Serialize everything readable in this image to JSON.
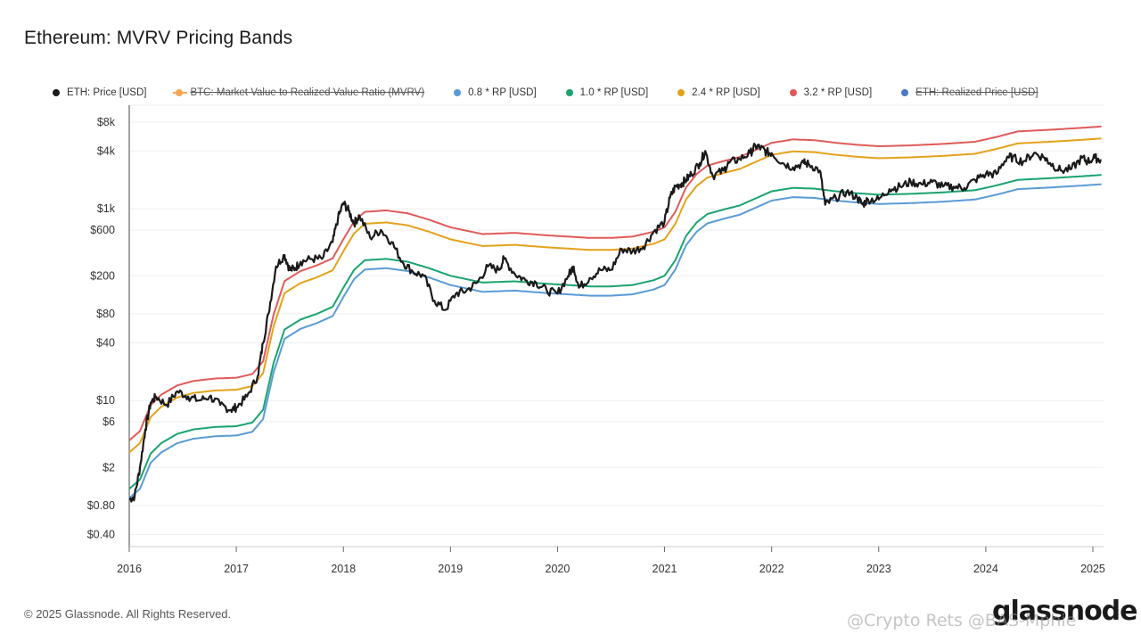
{
  "header": {
    "title": "Ethereum: MVRV Pricing Bands"
  },
  "legend": [
    {
      "label": "ETH: Price [USD]",
      "color": "#1a1a1a",
      "disabled": false,
      "style": "dot"
    },
    {
      "label": "BTC: Market Value to Realized Value Ratio (MVRV)",
      "color": "#f5a55a",
      "disabled": true,
      "style": "line"
    },
    {
      "label": "0.8 * RP [USD]",
      "color": "#5a9bd5",
      "disabled": false,
      "style": "dot"
    },
    {
      "label": "1.0 * RP [USD]",
      "color": "#1aa36f",
      "disabled": false,
      "style": "dot"
    },
    {
      "label": "2.4 * RP [USD]",
      "color": "#e3a21a",
      "disabled": false,
      "style": "dot"
    },
    {
      "label": "3.2 * RP [USD]",
      "color": "#e05a5a",
      "disabled": false,
      "style": "dot"
    },
    {
      "label": "ETH: Realized Price [USD]",
      "color": "#4a78c2",
      "disabled": true,
      "style": "dot"
    }
  ],
  "footer": {
    "copyright": "© 2025 Glassnode. All Rights Reserved.",
    "brand": "glassnode"
  },
  "watermark": "@Crypto Rets @BAS-Mphie",
  "chart_data": {
    "type": "line",
    "yscale": "log",
    "ylim": [
      0.3,
      12000
    ],
    "xlim": [
      2016.0,
      2025.1
    ],
    "ytick_labels": [
      "$8k",
      "$4k",
      "$1k",
      "$600",
      "$200",
      "$80",
      "$40",
      "$10",
      "$6",
      "$2",
      "$0.80",
      "$0.40"
    ],
    "ytick_values": [
      8000,
      4000,
      1000,
      600,
      200,
      80,
      40,
      10,
      6,
      2,
      0.8,
      0.4
    ],
    "xtick_labels": [
      "2016",
      "2017",
      "2018",
      "2019",
      "2020",
      "2021",
      "2022",
      "2023",
      "2024",
      "2025"
    ],
    "xtick_values": [
      2016,
      2017,
      2018,
      2019,
      2020,
      2021,
      2022,
      2023,
      2024,
      2025
    ],
    "grid": true,
    "realized_price_x": [
      2016.0,
      2016.1,
      2016.2,
      2016.3,
      2016.45,
      2016.6,
      2016.8,
      2017.0,
      2017.15,
      2017.25,
      2017.35,
      2017.45,
      2017.6,
      2017.75,
      2017.9,
      2018.0,
      2018.1,
      2018.2,
      2018.4,
      2018.6,
      2018.8,
      2019.0,
      2019.3,
      2019.6,
      2019.9,
      2020.1,
      2020.3,
      2020.5,
      2020.7,
      2020.9,
      2021.0,
      2021.1,
      2021.2,
      2021.3,
      2021.4,
      2021.55,
      2021.7,
      2021.85,
      2022.0,
      2022.2,
      2022.4,
      2022.6,
      2022.8,
      2023.0,
      2023.3,
      2023.6,
      2023.9,
      2024.1,
      2024.3,
      2024.6,
      2024.9,
      2025.08
    ],
    "realized_price_y": [
      1.2,
      1.5,
      2.8,
      3.6,
      4.5,
      5.0,
      5.3,
      5.4,
      5.9,
      8.0,
      25,
      55,
      70,
      80,
      95,
      150,
      230,
      290,
      300,
      280,
      240,
      200,
      170,
      175,
      165,
      160,
      155,
      155,
      160,
      180,
      200,
      290,
      520,
      720,
      880,
      980,
      1080,
      1280,
      1520,
      1650,
      1620,
      1520,
      1450,
      1400,
      1430,
      1480,
      1560,
      1750,
      2000,
      2080,
      2180,
      2250
    ],
    "series": [
      {
        "name": "ETH: Price [USD]",
        "color": "#1a1a1a",
        "x": [
          2016.0,
          2016.05,
          2016.1,
          2016.15,
          2016.2,
          2016.25,
          2016.35,
          2016.45,
          2016.55,
          2016.65,
          2016.75,
          2016.85,
          2016.95,
          2017.0,
          2017.1,
          2017.2,
          2017.25,
          2017.3,
          2017.37,
          2017.45,
          2017.5,
          2017.55,
          2017.6,
          2017.7,
          2017.8,
          2017.9,
          2017.95,
          2018.0,
          2018.05,
          2018.1,
          2018.15,
          2018.25,
          2018.35,
          2018.45,
          2018.55,
          2018.65,
          2018.75,
          2018.85,
          2018.95,
          2019.05,
          2019.15,
          2019.25,
          2019.35,
          2019.45,
          2019.5,
          2019.6,
          2019.7,
          2019.8,
          2019.9,
          2020.0,
          2020.1,
          2020.15,
          2020.2,
          2020.3,
          2020.4,
          2020.5,
          2020.6,
          2020.7,
          2020.8,
          2020.9,
          2021.0,
          2021.05,
          2021.1,
          2021.15,
          2021.2,
          2021.25,
          2021.33,
          2021.38,
          2021.45,
          2021.55,
          2021.6,
          2021.7,
          2021.8,
          2021.85,
          2021.9,
          2021.95,
          2022.0,
          2022.1,
          2022.2,
          2022.3,
          2022.35,
          2022.45,
          2022.5,
          2022.6,
          2022.7,
          2022.8,
          2022.85,
          2022.9,
          2023.0,
          2023.1,
          2023.2,
          2023.3,
          2023.4,
          2023.5,
          2023.6,
          2023.7,
          2023.8,
          2023.9,
          2024.0,
          2024.1,
          2024.2,
          2024.25,
          2024.35,
          2024.45,
          2024.55,
          2024.6,
          2024.7,
          2024.8,
          2024.9,
          2024.95,
          2025.02,
          2025.08
        ],
        "y": [
          0.93,
          1.0,
          2.0,
          5.0,
          9.5,
          11.0,
          9.0,
          12.5,
          11.0,
          10.0,
          11.0,
          9.0,
          8.0,
          8.5,
          11.0,
          18.0,
          40.0,
          80.0,
          250.0,
          330.0,
          230.0,
          240.0,
          280.0,
          300.0,
          300.0,
          450.0,
          800.0,
          1150.0,
          950.0,
          700.0,
          850.0,
          500.0,
          600.0,
          450.0,
          280.0,
          220.0,
          200.0,
          110.0,
          88.0,
          130.0,
          140.0,
          170.0,
          250.0,
          230.0,
          300.0,
          210.0,
          180.0,
          170.0,
          140.0,
          130.0,
          200.0,
          250.0,
          150.0,
          190.0,
          230.0,
          230.0,
          380.0,
          360.0,
          400.0,
          580.0,
          730.0,
          1300.0,
          1700.0,
          1800.0,
          2000.0,
          2300.0,
          3000.0,
          4000.0,
          2200.0,
          2500.0,
          3000.0,
          3300.0,
          3800.0,
          4500.0,
          4300.0,
          3900.0,
          3800.0,
          3000.0,
          2700.0,
          3000.0,
          2900.0,
          2500.0,
          1100.0,
          1300.0,
          1500.0,
          1300.0,
          1100.0,
          1250.0,
          1250.0,
          1600.0,
          1700.0,
          1900.0,
          1800.0,
          1900.0,
          1700.0,
          1700.0,
          1650.0,
          2000.0,
          2300.0,
          2300.0,
          3500.0,
          3400.0,
          3100.0,
          3800.0,
          3400.0,
          3000.0,
          2500.0,
          2600.0,
          3400.0,
          3100.0,
          3400.0,
          3200.0
        ]
      },
      {
        "name": "0.8 * RP [USD]",
        "color": "#5a9bd5",
        "multiplier": 0.8
      },
      {
        "name": "1.0 * RP [USD]",
        "color": "#1aa36f",
        "multiplier": 1.0
      },
      {
        "name": "2.4 * RP [USD]",
        "color": "#e3a21a",
        "multiplier": 2.4
      },
      {
        "name": "3.2 * RP [USD]",
        "color": "#e05a5a",
        "multiplier": 3.2
      }
    ]
  }
}
